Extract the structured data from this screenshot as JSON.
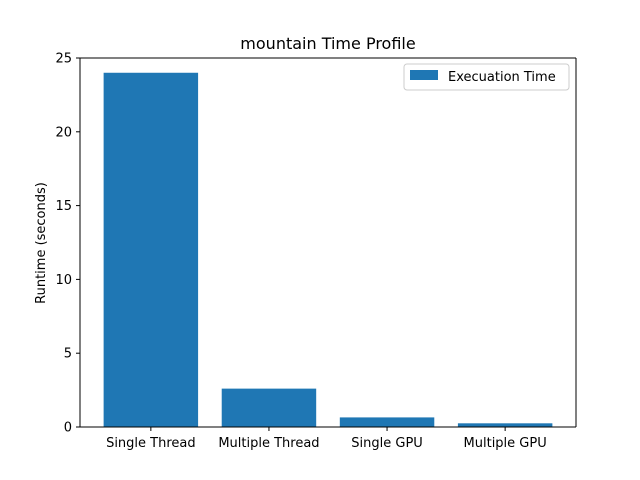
{
  "chart_data": {
    "type": "bar",
    "title": "mountain Time Profile",
    "xlabel": "",
    "ylabel": "Runtime (seconds)",
    "categories": [
      "Single Thread",
      "Multiple Thread",
      "Single GPU",
      "Multiple GPU"
    ],
    "series": [
      {
        "name": "Execuation Time",
        "values": [
          24.0,
          2.6,
          0.65,
          0.25
        ],
        "color": "#1f77b4"
      }
    ],
    "ylim": [
      0,
      25
    ],
    "yticks": [
      0,
      5,
      10,
      15,
      20,
      25
    ],
    "grid": false,
    "legend_position": "top-right"
  }
}
